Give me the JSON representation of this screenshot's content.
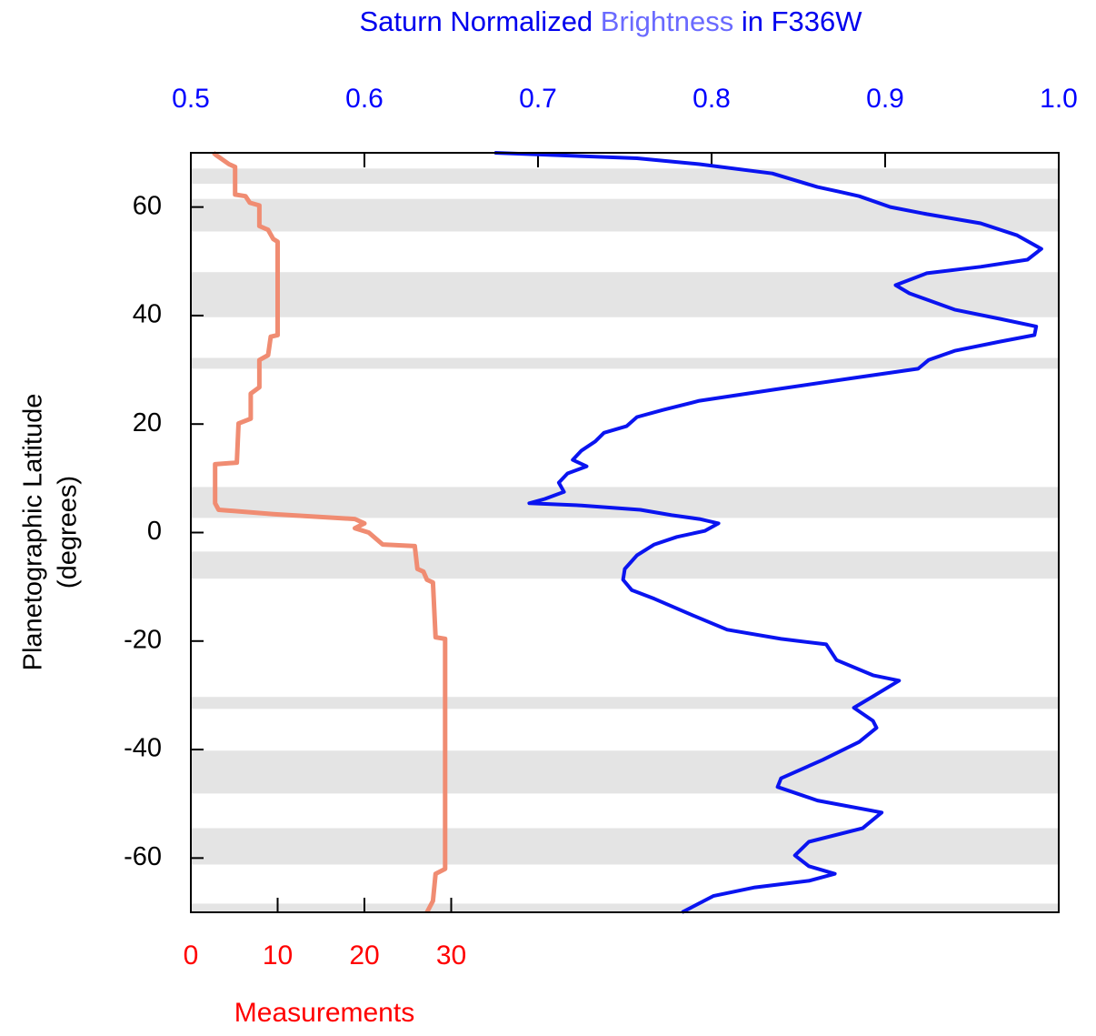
{
  "chart_data": {
    "type": "line",
    "title": [
      {
        "text": "Saturn Normalized ",
        "color": "#0000ee"
      },
      {
        "text": "Brightness",
        "color": "#6a6aff"
      },
      {
        "text": " in F336W",
        "color": "#0000ee"
      }
    ],
    "ylabel": [
      "Planetographic Latitude",
      "(degrees)"
    ],
    "ylim": [
      -70,
      70
    ],
    "yticks": [
      60,
      40,
      20,
      0,
      -20,
      -40,
      -60
    ],
    "xlim": [
      0.5,
      1.0
    ],
    "xticks": [
      0.5,
      0.6,
      0.7,
      0.8,
      0.9,
      {
        "value": 1,
        "label": "1.0"
      }
    ],
    "xtick_color": "#0000ff",
    "x2label": "Measurements",
    "x2lim": [
      0,
      100
    ],
    "x2ticks": [
      0,
      10,
      20,
      30
    ],
    "x2_color": "#ff0000",
    "band_color": "#e4e4e4",
    "bands": [
      [
        64.3,
        67.1
      ],
      [
        55.5,
        61.5
      ],
      [
        39.7,
        48
      ],
      [
        30.2,
        32.2
      ],
      [
        2.7,
        8.4
      ],
      [
        -8.5,
        -3.5
      ],
      [
        -32.5,
        -30.3
      ],
      [
        -48.1,
        -40.2
      ],
      [
        -61.2,
        -54.5
      ],
      [
        -70,
        -68.4
      ]
    ],
    "series": [
      {
        "color": "#0a14f0",
        "axis": "x",
        "latitude": [
          70,
          69,
          67.9,
          66.2,
          63.7,
          62.8,
          62,
          60,
          58.7,
          57,
          54.8,
          52.3,
          50.3,
          49,
          47.8,
          45.6,
          44.1,
          41.1,
          39.4,
          38,
          36.4,
          35.2,
          33.5,
          31.8,
          30.2,
          28.5,
          26.3,
          24.3,
          22.6,
          21.3,
          19.6,
          18.4,
          16.8,
          15.1,
          13.4,
          12.2,
          10.9,
          9.2,
          7.5,
          6.2,
          5.4,
          5.0,
          4.2,
          3.2,
          2.5,
          1.7,
          0.3,
          -0.8,
          -2.2,
          -4.2,
          -6.7,
          -8.7,
          -10.6,
          -12.2,
          -15.1,
          -17.9,
          -19.6,
          -20.6,
          -23.5,
          -26.3,
          -27.3,
          -30.2,
          -32.3,
          -34.7,
          -36,
          -38.6,
          -41.9,
          -45.3,
          -46.9,
          -49.4,
          -51.6,
          -54.5,
          -57,
          -59.5,
          -61.5,
          -62.9,
          -64.2,
          -65.4,
          -67,
          -70
        ],
        "values": [
          0.675,
          0.757,
          0.793,
          0.835,
          0.861,
          0.874,
          0.885,
          0.903,
          0.924,
          0.955,
          0.976,
          0.99,
          0.982,
          0.955,
          0.924,
          0.906,
          0.914,
          0.94,
          0.966,
          0.987,
          0.986,
          0.966,
          0.94,
          0.925,
          0.919,
          0.882,
          0.835,
          0.793,
          0.772,
          0.757,
          0.751,
          0.738,
          0.733,
          0.725,
          0.72,
          0.728,
          0.717,
          0.712,
          0.715,
          0.704,
          0.695,
          0.725,
          0.759,
          0.777,
          0.793,
          0.804,
          0.796,
          0.78,
          0.767,
          0.757,
          0.75,
          0.749,
          0.754,
          0.767,
          0.788,
          0.809,
          0.84,
          0.866,
          0.872,
          0.893,
          0.908,
          0.893,
          0.882,
          0.893,
          0.895,
          0.885,
          0.864,
          0.84,
          0.838,
          0.861,
          0.898,
          0.887,
          0.856,
          0.848,
          0.856,
          0.871,
          0.856,
          0.825,
          0.801,
          0.783
        ]
      },
      {
        "color": "#f08c72",
        "axis": "x2",
        "latitude": [
          70,
          69.6,
          67.9,
          67.4,
          62.3,
          62,
          60.8,
          60.3,
          56.5,
          55.8,
          54.1,
          53.6,
          36.4,
          36.1,
          32.7,
          31.8,
          26.8,
          25.6,
          21,
          20.1,
          12.9,
          12.6,
          5.4,
          4.2,
          3.4,
          2.5,
          1.7,
          0.8,
          0,
          -2.2,
          -2.5,
          -6.7,
          -7.2,
          -8.7,
          -9.2,
          -19.3,
          -19.6,
          -62,
          -62.9,
          -67.9,
          -70
        ],
        "values": [
          2.6,
          2.9,
          4.4,
          5.1,
          5.1,
          6.3,
          6.8,
          7.9,
          7.9,
          8.9,
          9.5,
          10,
          10,
          9.2,
          8.9,
          7.9,
          7.9,
          6.9,
          6.9,
          5.5,
          5.3,
          2.8,
          2.8,
          3.2,
          9.5,
          18.9,
          20,
          18.9,
          20.5,
          22.1,
          25.8,
          26.1,
          26.8,
          27.2,
          27.9,
          28.2,
          29.3,
          29.3,
          28.2,
          27.9,
          27.2
        ]
      }
    ]
  }
}
